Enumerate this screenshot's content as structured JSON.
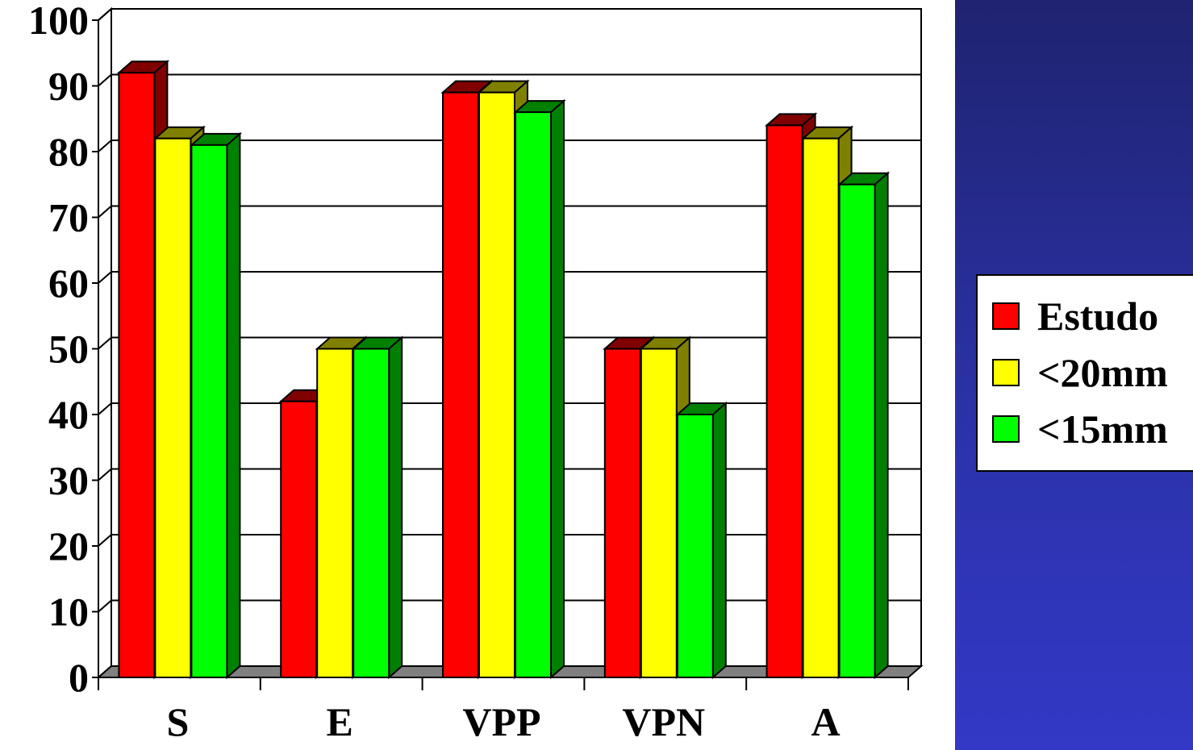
{
  "chart_data": {
    "type": "bar",
    "categories": [
      "S",
      "E",
      "VPP",
      "VPN",
      "A"
    ],
    "series": [
      {
        "name": "Estudo",
        "values": [
          92,
          42,
          89,
          50,
          84
        ],
        "color": "#ff0000",
        "side": "#800000"
      },
      {
        "name": "<20mm",
        "values": [
          82,
          50,
          89,
          50,
          82
        ],
        "color": "#ffff00",
        "side": "#808000"
      },
      {
        "name": "<15mm",
        "values": [
          81,
          50,
          86,
          40,
          75
        ],
        "color": "#00ff00",
        "side": "#008000"
      }
    ],
    "ylim": [
      0,
      100
    ],
    "yticks": [
      "0",
      "10",
      "20",
      "30",
      "40",
      "50",
      "60",
      "70",
      "80",
      "90",
      "100"
    ],
    "grid": true,
    "legend_position": "right",
    "floor_color": "#808080"
  }
}
